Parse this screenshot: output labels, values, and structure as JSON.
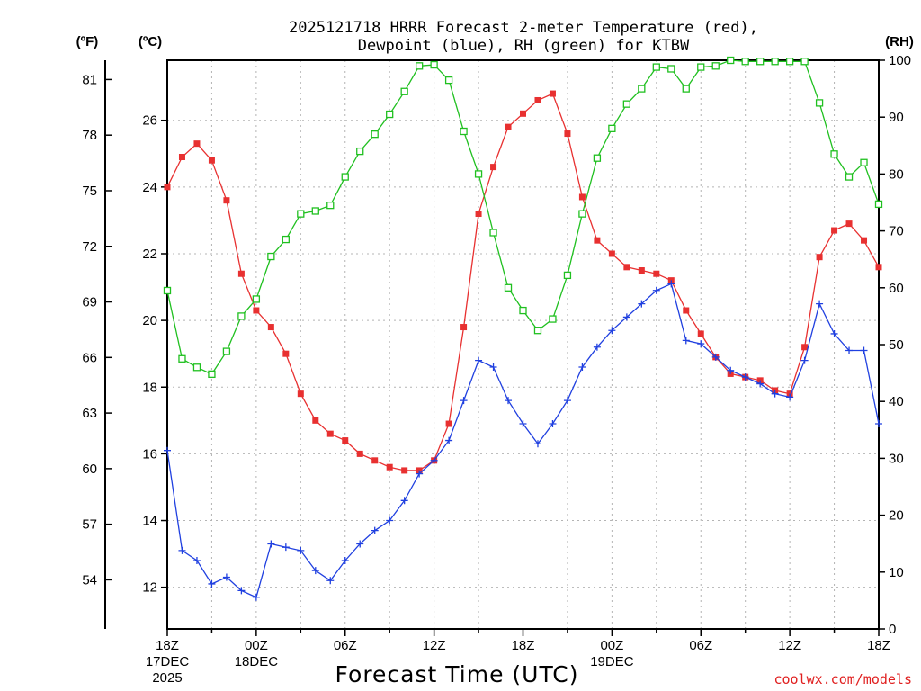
{
  "chart_data": {
    "type": "line",
    "title": [
      "2025121718 HRRR Forecast 2-meter Temperature (red),",
      "Dewpoint (blue), RH (green) for KTBW"
    ],
    "xlabel": "Forecast Time (UTC)",
    "credit": "coolwx.com/models",
    "units": {
      "fahrenheit": "(ºF)",
      "celsius": "(ºC)",
      "rh": "(RH)"
    },
    "celsius_axis": {
      "range": [
        10.75,
        27.8
      ],
      "ticks": [
        "12",
        "14",
        "16",
        "18",
        "20",
        "22",
        "24",
        "26"
      ],
      "tick_values": [
        12,
        14,
        16,
        18,
        20,
        22,
        24,
        26
      ]
    },
    "fahrenheit_axis": {
      "ticks": [
        "54",
        "57",
        "60",
        "63",
        "66",
        "69",
        "72",
        "75",
        "78",
        "81"
      ],
      "tick_values": [
        54,
        57,
        60,
        63,
        66,
        69,
        72,
        75,
        78,
        81
      ]
    },
    "rh_axis": {
      "range": [
        0,
        100
      ],
      "ticks": [
        "0",
        "10",
        "20",
        "30",
        "40",
        "50",
        "60",
        "70",
        "80",
        "90",
        "100"
      ],
      "tick_values": [
        0,
        10,
        20,
        30,
        40,
        50,
        60,
        70,
        80,
        90,
        100
      ]
    },
    "x_axis": {
      "hours": 48,
      "ticks": [
        {
          "hour": 0,
          "lines": [
            "18Z",
            "17DEC",
            "2025"
          ]
        },
        {
          "hour": 6,
          "lines": [
            "00Z",
            "18DEC"
          ]
        },
        {
          "hour": 12,
          "lines": [
            "06Z"
          ]
        },
        {
          "hour": 18,
          "lines": [
            "12Z"
          ]
        },
        {
          "hour": 24,
          "lines": [
            "18Z"
          ]
        },
        {
          "hour": 30,
          "lines": [
            "00Z",
            "19DEC"
          ]
        },
        {
          "hour": 36,
          "lines": [
            "06Z"
          ]
        },
        {
          "hour": 42,
          "lines": [
            "12Z"
          ]
        },
        {
          "hour": 48,
          "lines": [
            "18Z"
          ]
        }
      ]
    },
    "series": [
      {
        "name": "Temperature (red)",
        "unit": "C",
        "color": "#e83030",
        "marker": "filled-square",
        "values": [
          24.0,
          24.9,
          25.3,
          24.8,
          23.6,
          21.4,
          20.3,
          19.8,
          19.0,
          17.8,
          17.0,
          16.6,
          16.4,
          16.0,
          15.8,
          15.6,
          15.5,
          15.5,
          15.8,
          16.9,
          19.8,
          23.2,
          24.6,
          25.8,
          26.2,
          26.6,
          26.8,
          25.6,
          23.7,
          22.4,
          22.0,
          21.6,
          21.5,
          21.4,
          21.2,
          20.3,
          19.6,
          18.9,
          18.4,
          18.3,
          18.2,
          17.9,
          17.8,
          19.2,
          21.9,
          22.7,
          22.9,
          22.4,
          21.6
        ]
      },
      {
        "name": "Dewpoint (blue)",
        "unit": "C",
        "color": "#2040e0",
        "marker": "plus",
        "values": [
          16.1,
          13.1,
          12.8,
          12.1,
          12.3,
          11.9,
          11.7,
          13.3,
          13.2,
          13.1,
          12.5,
          12.2,
          12.8,
          13.3,
          13.7,
          14.0,
          14.6,
          15.4,
          15.8,
          16.4,
          17.6,
          18.8,
          18.6,
          17.6,
          16.9,
          16.3,
          16.9,
          17.6,
          18.6,
          19.2,
          19.7,
          20.1,
          20.5,
          20.9,
          21.1,
          19.4,
          19.3,
          18.9,
          18.5,
          18.3,
          18.1,
          17.8,
          17.7,
          18.8,
          20.5,
          19.6,
          19.1,
          19.1,
          16.9
        ]
      },
      {
        "name": "RH (green)",
        "unit": "%",
        "color": "#20c020",
        "marker": "open-square",
        "values": [
          59.5,
          47.5,
          46,
          44.8,
          48.8,
          55,
          58,
          65.5,
          68.5,
          73,
          73.5,
          74.5,
          79.5,
          84,
          87,
          90.5,
          94.5,
          99,
          99.2,
          96.5,
          87.5,
          80,
          69.7,
          60,
          56,
          52.5,
          54.5,
          62.2,
          73,
          82.8,
          88,
          92.3,
          95,
          98.8,
          98.5,
          95,
          98.8,
          99,
          100,
          99.8,
          99.8,
          99.8,
          99.8,
          99.8,
          92.5,
          83.5,
          79.5,
          82,
          74.7
        ]
      }
    ]
  }
}
